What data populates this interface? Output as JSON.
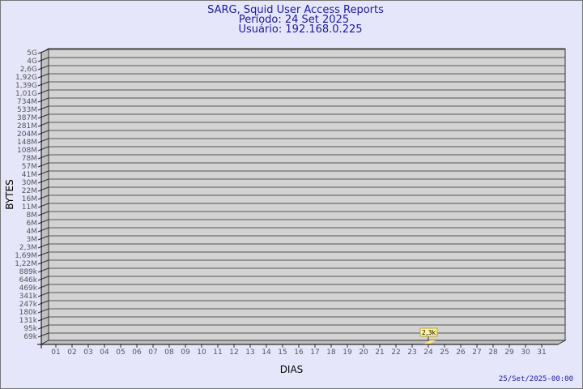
{
  "chart_data": {
    "type": "bar",
    "title": [
      "SARG, Squid User Access Reports",
      "Período: 24 Set 2025",
      "Usuário: 192.168.0.225"
    ],
    "xlabel": "DIAS",
    "ylabel": "BYTES",
    "y_scale": "log",
    "y_tick_labels": [
      "5G",
      "4G",
      "2,6G",
      "1,92G",
      "1,39G",
      "1,01G",
      "734M",
      "533M",
      "387M",
      "281M",
      "204M",
      "148M",
      "108M",
      "78M",
      "57M",
      "41M",
      "30M",
      "22M",
      "16M",
      "11M",
      "8M",
      "6M",
      "4M",
      "3M",
      "2,3M",
      "1,69M",
      "1,22M",
      "889k",
      "646k",
      "469k",
      "341k",
      "247k",
      "180k",
      "131k",
      "95k",
      "69k"
    ],
    "categories": [
      "01",
      "02",
      "03",
      "04",
      "05",
      "06",
      "07",
      "08",
      "09",
      "10",
      "11",
      "12",
      "13",
      "14",
      "15",
      "16",
      "17",
      "18",
      "19",
      "20",
      "21",
      "22",
      "23",
      "24",
      "25",
      "26",
      "27",
      "28",
      "29",
      "30",
      "31"
    ],
    "series": [
      {
        "points": [
          {
            "x": "24",
            "value": 2300,
            "label": "2,3k"
          }
        ]
      }
    ],
    "grid": true,
    "colors": {
      "background": "#e6e6fa",
      "plot": "#d3d3d3",
      "bar": "#ffe680",
      "title": "#1a1a9c"
    }
  },
  "footer": {
    "timestamp": "25/Set/2025-00:00"
  }
}
